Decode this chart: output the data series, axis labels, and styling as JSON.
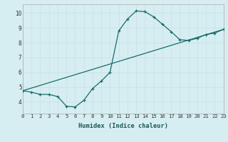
{
  "xlabel": "Humidex (Indice chaleur)",
  "ylabel": "",
  "bg_color": "#d6eef2",
  "line_color": "#1a6b6b",
  "xmin": 0,
  "xmax": 23,
  "ymin": 3.2,
  "ymax": 10.6,
  "yticks": [
    4,
    5,
    6,
    7,
    8,
    9,
    10
  ],
  "curve1_x": [
    0,
    1,
    2,
    3,
    4,
    5,
    6,
    7,
    8,
    9,
    10,
    11,
    12,
    13,
    14,
    15,
    16,
    17,
    18,
    19,
    20,
    21,
    22,
    23
  ],
  "curve1_y": [
    4.75,
    4.65,
    4.5,
    4.5,
    4.35,
    3.7,
    3.65,
    4.1,
    4.9,
    5.4,
    6.0,
    8.8,
    9.6,
    10.15,
    10.1,
    9.75,
    9.25,
    8.75,
    8.2,
    8.15,
    8.3,
    8.55,
    8.65,
    8.9
  ],
  "curve2_x": [
    0,
    23
  ],
  "curve2_y": [
    4.75,
    8.9
  ],
  "grid_color": "#c8e0e4",
  "markersize": 2.8,
  "tick_fontsize": 5.2,
  "xlabel_fontsize": 6.2
}
